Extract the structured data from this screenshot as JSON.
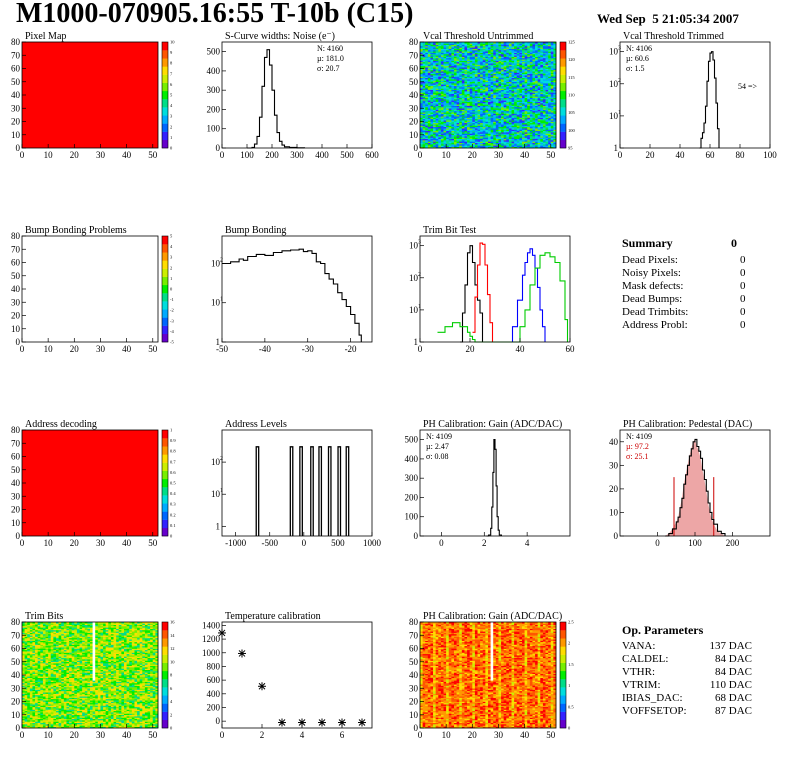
{
  "header": {
    "title": "M1000-070905.16:55 T-10b (C15)",
    "date": "Wed Sep  5 21:05:34 2007"
  },
  "colors": {
    "red_fill": "#ff0000",
    "line_black": "#000000",
    "series_red": "#ff0000",
    "series_blue": "#0000ff",
    "series_green": "#00cc00",
    "pedestal_fill": "#cc0000"
  },
  "palette": [
    "#6600cc",
    "#3322ff",
    "#0066ff",
    "#00aaff",
    "#00dddd",
    "#00dd88",
    "#00ee00",
    "#77ee00",
    "#ccee00",
    "#ffdd00",
    "#ff9900",
    "#ff5500",
    "#ff0000"
  ],
  "chart_data": [
    {
      "id": "pixel-map",
      "type": "heatmap",
      "title": "Pixel Map",
      "xlim": [
        0,
        52
      ],
      "ylim": [
        0,
        80
      ],
      "xticks": [
        0,
        10,
        20,
        30,
        40,
        50
      ],
      "yticks": [
        0,
        10,
        20,
        30,
        40,
        50,
        60,
        70,
        80
      ],
      "fill": "uniform-max",
      "zticks": [
        "0",
        "1",
        "2",
        "3",
        "4",
        "5",
        "6",
        "7",
        "8",
        "9",
        "10"
      ]
    },
    {
      "id": "scurve-widths",
      "type": "line",
      "title": "S-Curve widths: Noise (e⁻)",
      "xlim": [
        0,
        600
      ],
      "ylim": [
        0,
        550
      ],
      "log": false,
      "xticks": [
        0,
        100,
        200,
        300,
        400,
        500,
        600
      ],
      "yticks": [
        0,
        100,
        200,
        300,
        400,
        500
      ],
      "stats": [
        "N: 4160",
        "µ: 181.0",
        "σ: 20.7"
      ],
      "series": [
        {
          "color": "#000000",
          "x": [
            100,
            120,
            130,
            140,
            150,
            160,
            170,
            180,
            190,
            200,
            210,
            220,
            230,
            240,
            250,
            270,
            300,
            330
          ],
          "y": [
            0,
            3,
            20,
            60,
            160,
            320,
            470,
            510,
            430,
            300,
            170,
            80,
            35,
            15,
            6,
            3,
            1,
            0
          ]
        }
      ]
    },
    {
      "id": "vcal-untrimmed",
      "type": "heatmap",
      "title": "Vcal Threshold Untrimmed",
      "xlim": [
        0,
        52
      ],
      "ylim": [
        0,
        80
      ],
      "xticks": [
        0,
        10,
        20,
        30,
        40,
        50
      ],
      "yticks": [
        0,
        10,
        20,
        30,
        40,
        50,
        60,
        70,
        80
      ],
      "fill": "noise-untrimmed",
      "zticks": [
        "95",
        "100",
        "105",
        "110",
        "115",
        "120",
        "125"
      ]
    },
    {
      "id": "vcal-trimmed",
      "type": "line",
      "title": "Vcal Threshold Trimmed",
      "xlim": [
        0,
        100
      ],
      "ylim": [
        1,
        2000
      ],
      "log": true,
      "xticks": [
        0,
        20,
        40,
        60,
        80,
        100
      ],
      "yticks": [
        1,
        10,
        100,
        1000
      ],
      "stats": [
        "N: 4106",
        "µ: 60.6",
        "σ:  1.5"
      ],
      "note": "54 =>",
      "series": [
        {
          "color": "#000000",
          "x": [
            53,
            54,
            55,
            56,
            57,
            58,
            59,
            60,
            61,
            62,
            63,
            64,
            65,
            66
          ],
          "y": [
            1,
            2,
            3,
            6,
            20,
            120,
            500,
            900,
            1000,
            550,
            150,
            25,
            4,
            1
          ]
        }
      ]
    },
    {
      "id": "bump-bonding-problems",
      "type": "heatmap",
      "title": "Bump Bonding Problems",
      "xlim": [
        0,
        52
      ],
      "ylim": [
        0,
        80
      ],
      "xticks": [
        0,
        10,
        20,
        30,
        40,
        50
      ],
      "yticks": [
        0,
        10,
        20,
        30,
        40,
        50,
        60,
        70,
        80
      ],
      "fill": "empty",
      "zticks": [
        "-5",
        "-4",
        "-3",
        "-2",
        "-1",
        "0",
        "1",
        "2",
        "3",
        "4",
        "5"
      ]
    },
    {
      "id": "bump-bonding",
      "type": "line",
      "title": "Bump Bonding",
      "xlim": [
        -50,
        -15
      ],
      "ylim": [
        1,
        500
      ],
      "log": true,
      "xticks": [
        -50,
        -40,
        -30,
        -20
      ],
      "yticks": [
        1,
        10,
        100
      ],
      "series": [
        {
          "color": "#000000",
          "x": [
            -50,
            -48,
            -46,
            -45,
            -44,
            -42,
            -40,
            -38,
            -36,
            -34,
            -32,
            -31,
            -30,
            -29,
            -28,
            -27,
            -26,
            -25,
            -24,
            -23,
            -22,
            -21,
            -20,
            -19,
            -18,
            -17.5
          ],
          "y": [
            100,
            110,
            130,
            120,
            150,
            170,
            160,
            190,
            210,
            220,
            230,
            200,
            210,
            180,
            110,
            100,
            55,
            40,
            30,
            18,
            12,
            8,
            5,
            3,
            1.5,
            1
          ]
        }
      ]
    },
    {
      "id": "trim-bit-test",
      "type": "line",
      "title": "Trim Bit Test",
      "xlim": [
        0,
        60
      ],
      "ylim": [
        1,
        2000
      ],
      "log": true,
      "xticks": [
        0,
        20,
        40,
        60
      ],
      "yticks": [
        1,
        10,
        100,
        1000
      ],
      "series": [
        {
          "color": "#000000",
          "x": [
            16,
            17,
            18,
            19,
            20,
            21,
            22,
            23,
            24,
            25
          ],
          "y": [
            1,
            8,
            60,
            600,
            1000,
            300,
            60,
            20,
            8,
            1
          ]
        },
        {
          "color": "#ff0000",
          "x": [
            21,
            22,
            23,
            24,
            25,
            26,
            27,
            28,
            29
          ],
          "y": [
            2,
            25,
            250,
            1200,
            1100,
            250,
            30,
            4,
            1
          ]
        },
        {
          "color": "#0000ff",
          "x": [
            35,
            37,
            39,
            41,
            42,
            43,
            44,
            45,
            46,
            47,
            48,
            49,
            50
          ],
          "y": [
            1,
            3,
            20,
            120,
            300,
            600,
            800,
            500,
            200,
            50,
            10,
            3,
            1
          ]
        },
        {
          "color": "#00cc00",
          "x": [
            7,
            10,
            13,
            16,
            19,
            20,
            21,
            22,
            38,
            40,
            42,
            44,
            46,
            48,
            50,
            52,
            54,
            56,
            58,
            59
          ],
          "y": [
            2,
            3,
            4,
            3,
            2,
            1.5,
            1.2,
            1,
            1,
            3,
            10,
            60,
            200,
            500,
            600,
            450,
            300,
            80,
            5,
            1
          ]
        }
      ]
    },
    {
      "id": "address-decoding",
      "type": "heatmap",
      "title": "Address decoding",
      "xlim": [
        0,
        52
      ],
      "ylim": [
        0,
        80
      ],
      "xticks": [
        0,
        10,
        20,
        30,
        40,
        50
      ],
      "yticks": [
        0,
        10,
        20,
        30,
        40,
        50,
        60,
        70,
        80
      ],
      "fill": "uniform-max",
      "zticks": [
        "0",
        "0.1",
        "0.2",
        "0.3",
        "0.4",
        "0.5",
        "0.6",
        "0.7",
        "0.8",
        "0.9",
        "1"
      ]
    },
    {
      "id": "address-levels",
      "type": "spikes",
      "title": "Address Levels",
      "xlim": [
        -1200,
        1000
      ],
      "ylim": [
        0.5,
        1000
      ],
      "log": true,
      "xticks": [
        -1000,
        -500,
        0,
        500,
        1000
      ],
      "yticks": [
        1,
        10,
        100
      ],
      "peaks": [
        -680,
        -180,
        -40,
        120,
        240,
        380,
        520,
        640
      ],
      "peak_height": 300
    },
    {
      "id": "ph-gain",
      "type": "line",
      "title": "PH Calibration: Gain (ADC/DAC)",
      "xlim": [
        -1,
        6
      ],
      "ylim": [
        0,
        550
      ],
      "log": false,
      "xticks": [
        0,
        2,
        4
      ],
      "yticks": [
        0,
        100,
        200,
        300,
        400,
        500
      ],
      "stats": [
        "N: 4109",
        "µ: 2.47",
        "σ: 0.08"
      ],
      "series": [
        {
          "color": "#000000",
          "x": [
            2.1,
            2.2,
            2.3,
            2.35,
            2.4,
            2.45,
            2.5,
            2.55,
            2.6,
            2.65,
            2.7,
            2.8
          ],
          "y": [
            0,
            5,
            40,
            150,
            330,
            500,
            450,
            260,
            100,
            30,
            5,
            0
          ]
        }
      ]
    },
    {
      "id": "ph-pedestal",
      "type": "line",
      "title": "PH Calibration: Pedestal (DAC)",
      "xlim": [
        -100,
        300
      ],
      "ylim": [
        0,
        45
      ],
      "log": false,
      "xticks": [
        0,
        100,
        200
      ],
      "yticks": [
        0,
        10,
        20,
        30,
        40
      ],
      "stats": [
        "N: 4109",
        "µ: 97.2",
        "σ: 25.1"
      ],
      "stat_colors": [
        "#000000",
        "#cc0000",
        "#cc0000"
      ],
      "cut_lines": [
        44,
        150
      ],
      "series": [
        {
          "color": "#000000",
          "x": [
            20,
            30,
            40,
            50,
            55,
            60,
            65,
            70,
            75,
            80,
            85,
            90,
            95,
            100,
            105,
            110,
            115,
            120,
            125,
            130,
            135,
            140,
            145,
            150,
            160,
            170,
            180
          ],
          "y": [
            0,
            1,
            3,
            6,
            8,
            12,
            16,
            22,
            26,
            30,
            34,
            37,
            40,
            41,
            38,
            36,
            33,
            28,
            24,
            19,
            14,
            10,
            7,
            5,
            2,
            1,
            0
          ]
        }
      ]
    },
    {
      "id": "trim-bits",
      "type": "heatmap",
      "title": "Trim Bits",
      "xlim": [
        0,
        52
      ],
      "ylim": [
        0,
        80
      ],
      "xticks": [
        0,
        10,
        20,
        30,
        40,
        50
      ],
      "yticks": [
        0,
        10,
        20,
        30,
        40,
        50,
        60,
        70,
        80
      ],
      "fill": "noise-trim",
      "white_column": 27,
      "zticks": [
        "0",
        "2",
        "4",
        "6",
        "8",
        "10",
        "12",
        "14",
        "16"
      ]
    },
    {
      "id": "temperature-calibration",
      "type": "scatter",
      "title": "Temperature calibration",
      "xlim": [
        0,
        7.5
      ],
      "ylim": [
        -100,
        1450
      ],
      "log": false,
      "xticks": [
        0,
        2,
        4,
        6
      ],
      "yticks": [
        0,
        200,
        400,
        600,
        800,
        1000,
        1200,
        1400
      ],
      "series": [
        {
          "color": "#000000",
          "x": [
            0,
            1,
            2,
            3,
            4,
            5,
            6,
            7
          ],
          "y": [
            1290,
            990,
            510,
            -20,
            -20,
            -20,
            -20,
            -20
          ]
        }
      ]
    },
    {
      "id": "ph-gain-map",
      "type": "heatmap",
      "title": "PH Calibration: Gain (ADC/DAC)",
      "xlim": [
        0,
        52
      ],
      "ylim": [
        0,
        80
      ],
      "xticks": [
        0,
        10,
        20,
        30,
        40,
        50
      ],
      "yticks": [
        0,
        10,
        20,
        30,
        40,
        50,
        60,
        70,
        80
      ],
      "fill": "noise-gain",
      "white_column": 27,
      "zticks": [
        "0",
        "0.5",
        "1",
        "1.5",
        "2",
        "2.5"
      ]
    }
  ],
  "summary": {
    "title": "Summary",
    "total": "0",
    "rows": [
      {
        "label": "Dead Pixels:",
        "value": "0"
      },
      {
        "label": "Noisy Pixels:",
        "value": "0"
      },
      {
        "label": "Mask defects:",
        "value": "0"
      },
      {
        "label": "Dead Bumps:",
        "value": "0"
      },
      {
        "label": "Dead Trimbits:",
        "value": "0"
      },
      {
        "label": "Address Probl:",
        "value": "0"
      }
    ]
  },
  "op_parameters": {
    "title": "Op. Parameters",
    "rows": [
      {
        "label": "VANA:",
        "value": "137 DAC"
      },
      {
        "label": "CALDEL:",
        "value": "84 DAC"
      },
      {
        "label": "VTHR:",
        "value": "84 DAC"
      },
      {
        "label": "VTRIM:",
        "value": "110 DAC"
      },
      {
        "label": "IBIAS_DAC:",
        "value": "68 DAC"
      },
      {
        "label": "VOFFSETOP:",
        "value": "87 DAC"
      }
    ]
  }
}
